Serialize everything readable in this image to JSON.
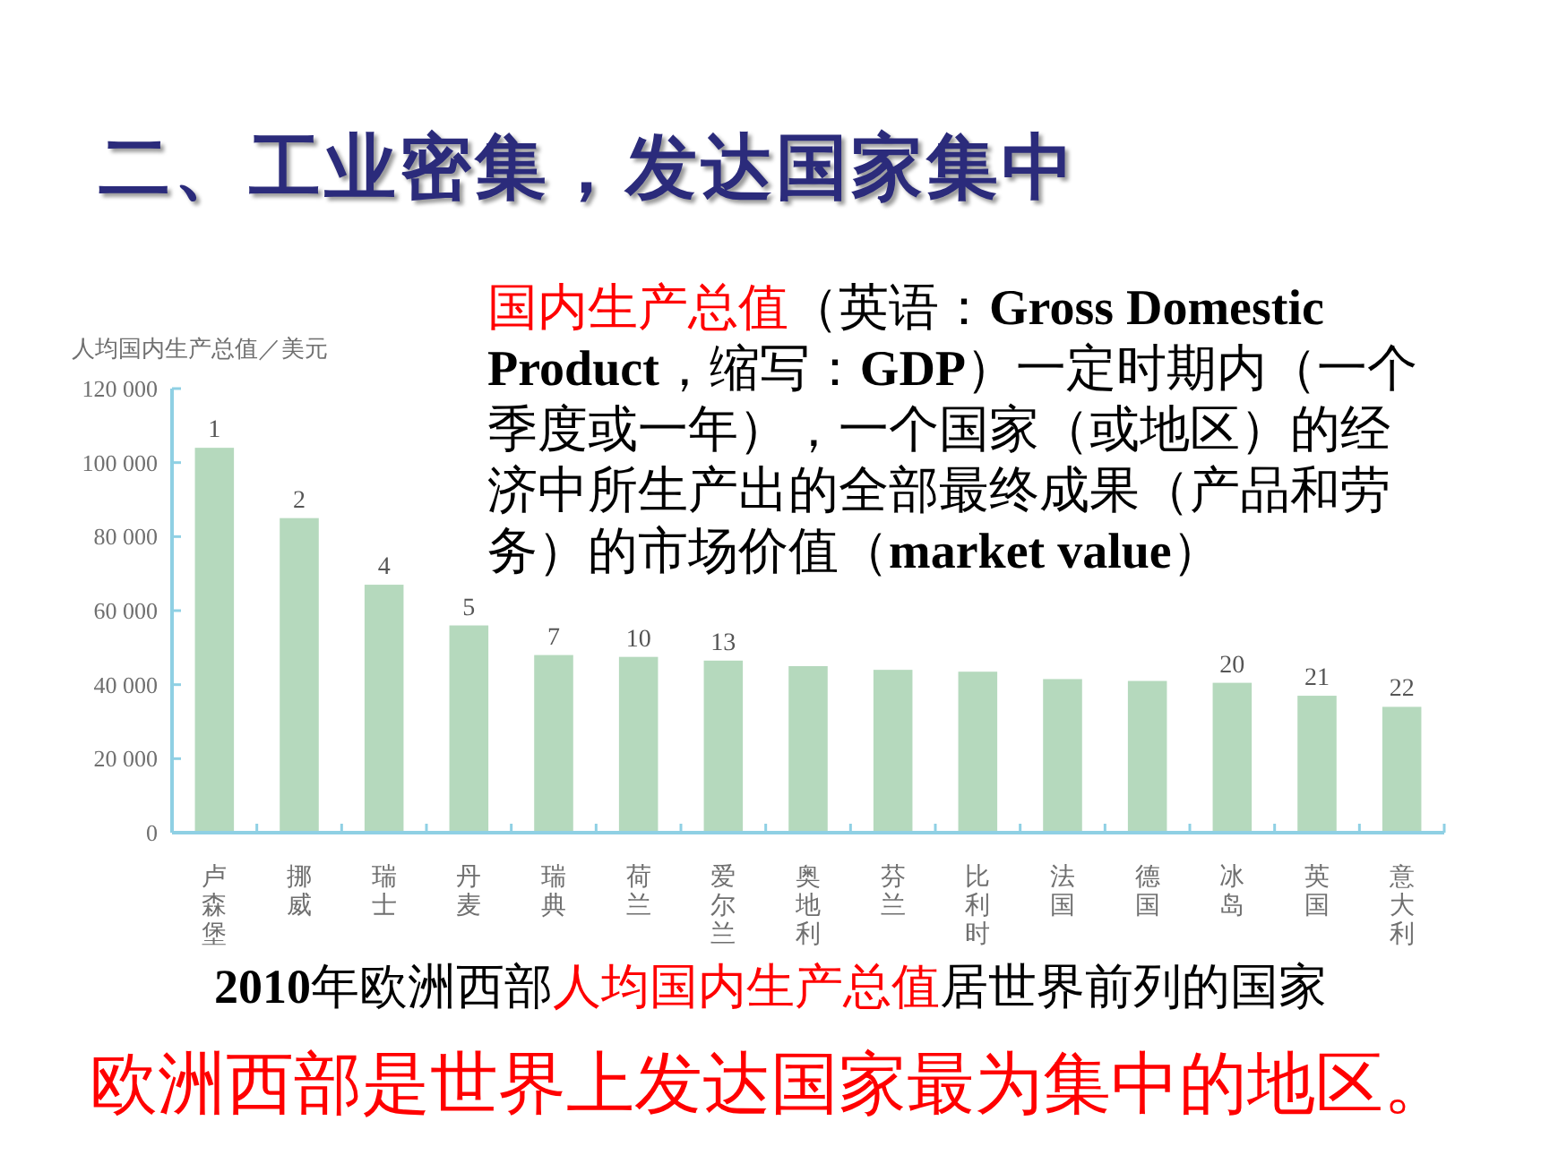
{
  "chart_data": {
    "type": "bar",
    "title": "二、工业密集，发达国家集中",
    "ylabel": "人均国内生产总值／美元",
    "categories": [
      "卢森堡",
      "挪威",
      "瑞士",
      "丹麦",
      "瑞典",
      "荷兰",
      "爱尔兰",
      "奥地利",
      "芬兰",
      "比利时",
      "法国",
      "德国",
      "冰岛",
      "英国",
      "意大利"
    ],
    "values": [
      104000,
      85000,
      67000,
      56000,
      48000,
      47500,
      46500,
      45000,
      44000,
      43500,
      41500,
      41000,
      40500,
      37000,
      34000
    ],
    "color": "#b5d9bd",
    "ylim": [
      0,
      120000
    ],
    "yticks": [
      0,
      {
        "value": 20000,
        "label": "20 000"
      },
      {
        "value": 40000,
        "label": "40 000"
      },
      {
        "value": 60000,
        "label": "60 000"
      },
      {
        "value": 80000,
        "label": "80 000"
      },
      {
        "value": 100000,
        "label": "100 000"
      },
      {
        "value": 120000,
        "label": "120 000"
      }
    ],
    "annotations": [
      "国内生产总值",
      "（英语：Gross Domestic Product，缩写：GDP）一定时期内（一个季度或一年），一个国家（或地区）的经济中所生产出的全部最终成果（产品和劳务）的市场价值（market value）",
      "2010年欧洲西部",
      "人均国内生产总值",
      "居世界前列的国家",
      "欧洲西部是世界上发达国家最为集中的地区。",
      {
        "text": "1",
        "x": "卢森堡",
        "y": 104000
      },
      {
        "text": "2",
        "x": "挪威",
        "y": 85000
      },
      {
        "text": "4",
        "x": "瑞士",
        "y": 67000
      },
      {
        "text": "5",
        "x": "丹麦",
        "y": 56000
      },
      {
        "text": "7",
        "x": "瑞典",
        "y": 48000
      },
      {
        "text": "10",
        "x": "荷兰",
        "y": 47500
      },
      {
        "text": "13",
        "x": "爱尔兰",
        "y": 46500
      },
      {
        "text": "20",
        "x": "冰岛",
        "y": 40500
      },
      {
        "text": "21",
        "x": "英国",
        "y": 37000
      },
      {
        "text": "22",
        "x": "意大利",
        "y": 34000
      }
    ]
  }
}
